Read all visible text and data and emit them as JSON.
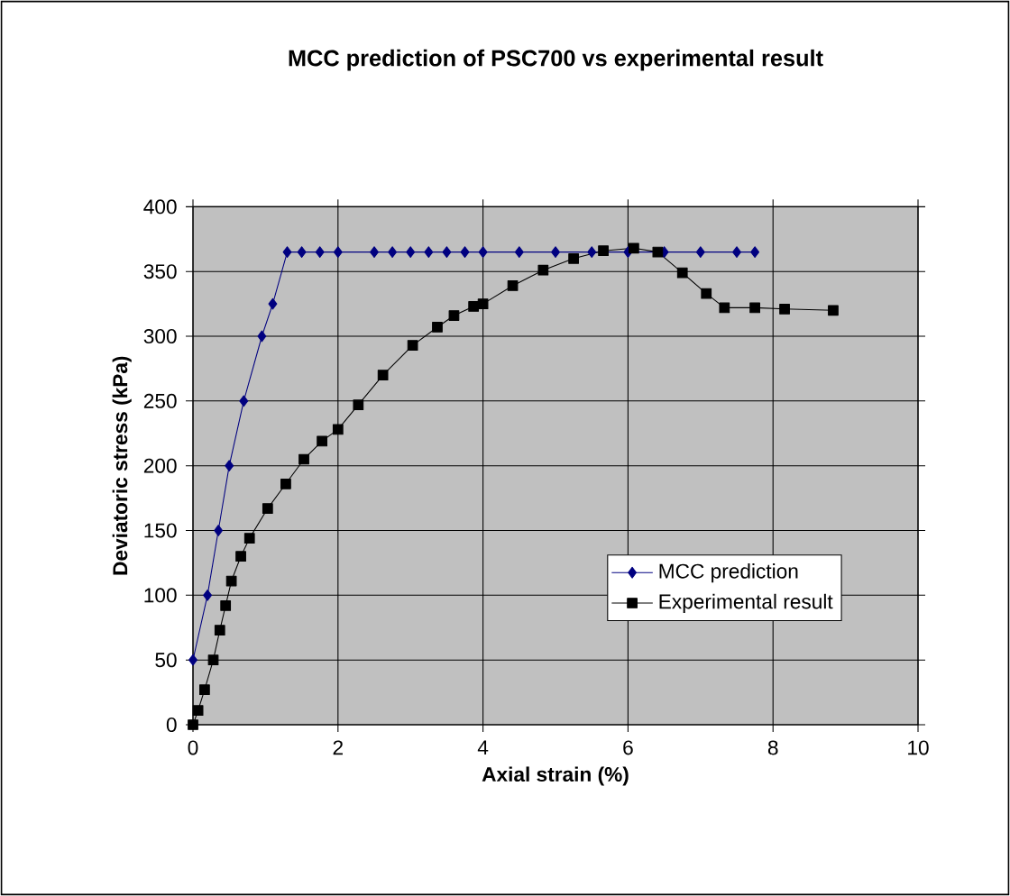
{
  "chart_data": {
    "type": "line",
    "title": "MCC prediction of PSC700 vs experimental result",
    "xlabel": "Axial strain (%)",
    "ylabel": "Deviatoric stress (kPa)",
    "xlim": [
      0,
      10
    ],
    "xticks": [
      0,
      2,
      4,
      6,
      8,
      10
    ],
    "ylim": [
      0,
      400
    ],
    "yticks": [
      0,
      50,
      100,
      150,
      200,
      250,
      300,
      350,
      400
    ],
    "grid": true,
    "legend": "bottom right",
    "series": [
      {
        "name": "MCC prediction",
        "color": "#000080",
        "marker": "diamond",
        "x": [
          0,
          0.2,
          0.35,
          0.5,
          0.7,
          0.95,
          1.1,
          1.3,
          1.5,
          1.75,
          2,
          2.5,
          2.75,
          3,
          3.25,
          3.5,
          3.75,
          4,
          4.5,
          5,
          5.5,
          6,
          6.5,
          7,
          7.5,
          7.75
        ],
        "values": [
          50,
          100,
          150,
          200,
          250,
          300,
          325,
          365,
          365,
          365,
          365,
          365,
          365,
          365,
          365,
          365,
          365,
          365,
          365,
          365,
          365,
          365,
          365,
          365,
          365,
          365
        ]
      },
      {
        "name": "Experimental result",
        "color": "#000000",
        "marker": "square",
        "x": [
          0,
          0.07,
          0.16,
          0.28,
          0.37,
          0.45,
          0.53,
          0.66,
          0.78,
          1.03,
          1.28,
          1.53,
          1.78,
          2.0,
          2.28,
          2.62,
          3.03,
          3.37,
          3.6,
          3.87,
          4.0,
          4.41,
          4.83,
          5.25,
          5.66,
          6.08,
          6.41,
          6.75,
          7.08,
          7.33,
          7.75,
          8.16,
          8.83
        ],
        "values": [
          0,
          11,
          27,
          50,
          73,
          92,
          111,
          130,
          144,
          167,
          186,
          205,
          219,
          228,
          247,
          270,
          293,
          307,
          316,
          323,
          325,
          339,
          351,
          360,
          366,
          368,
          365,
          349,
          333,
          322,
          322,
          321,
          320
        ]
      }
    ]
  }
}
